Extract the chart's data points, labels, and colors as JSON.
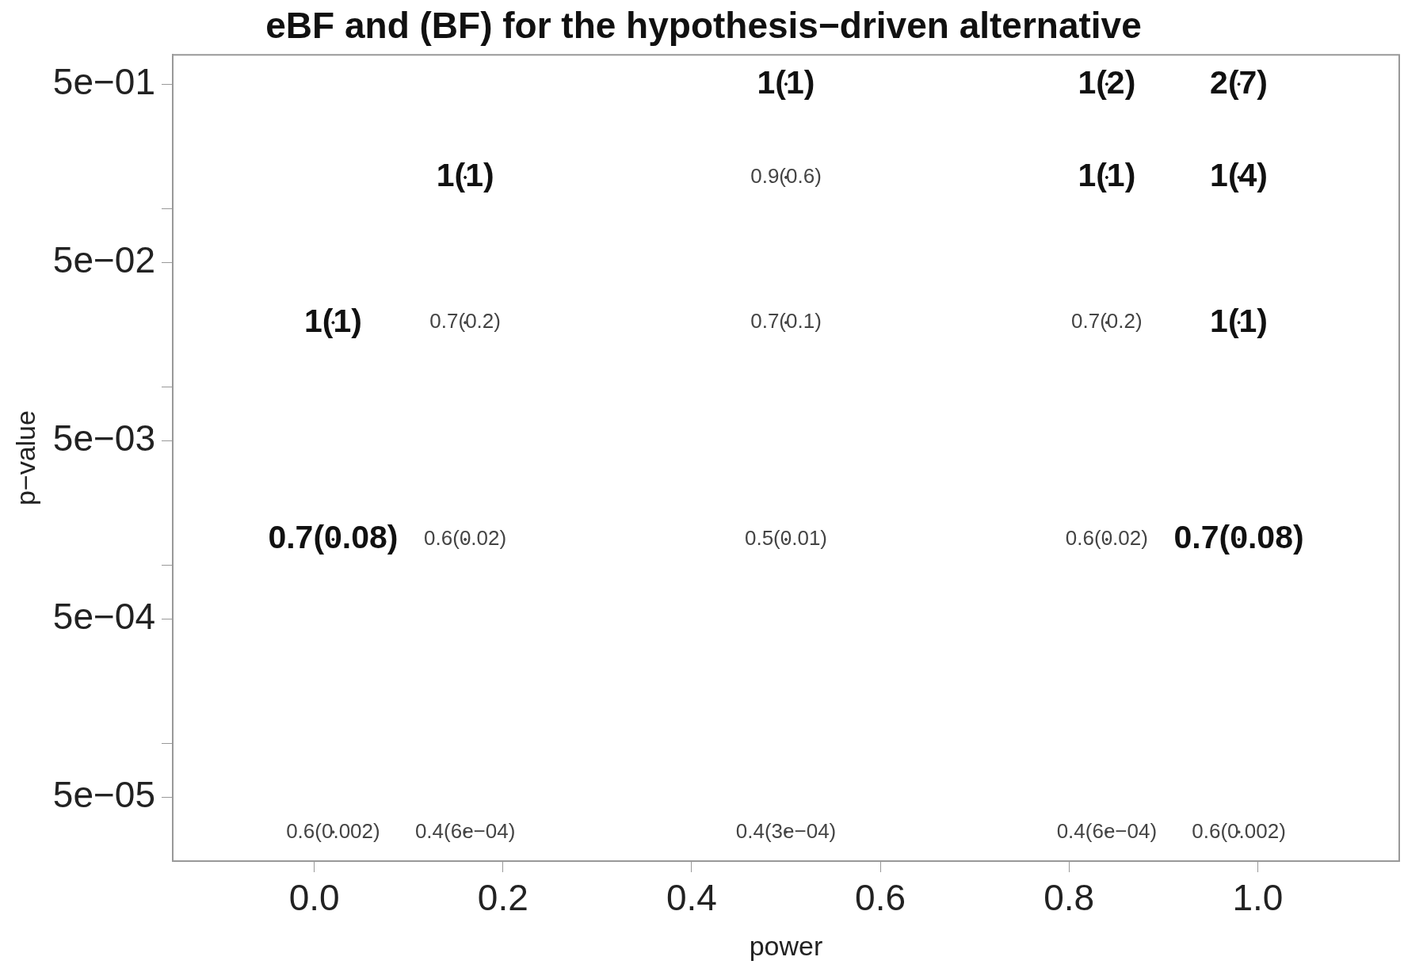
{
  "chart_data": {
    "type": "scatter",
    "title": "eBF and (BF) for the hypothesis−driven alternative",
    "xlabel": "power",
    "ylabel": "p−value",
    "log": "y",
    "xlim": [
      -0.15,
      1.15
    ],
    "xticks": [
      {
        "value": 0,
        "label": "0.0"
      },
      {
        "value": 0.2,
        "label": "0.2"
      },
      {
        "value": 0.4,
        "label": "0.4"
      },
      {
        "value": 0.6,
        "label": "0.6"
      },
      {
        "value": 0.8,
        "label": "0.8"
      },
      {
        "value": 1,
        "label": "1.0"
      }
    ],
    "ylim": [
      2.2e-05,
      0.73
    ],
    "yticks": [
      {
        "value": 0.5,
        "label": "5e−01"
      },
      {
        "value": 0.1,
        "label": null
      },
      {
        "value": 0.05,
        "label": "5e−02"
      },
      {
        "value": 0.01,
        "label": null
      },
      {
        "value": 0.005,
        "label": "5e−03"
      },
      {
        "value": 0.001,
        "label": null
      },
      {
        "value": 0.0005,
        "label": "5e−04"
      },
      {
        "value": 0.0001,
        "label": null
      },
      {
        "value": 5e-05,
        "label": "5e−05"
      }
    ],
    "series": [
      {
        "color": "#111111",
        "x": [
          0.5,
          0.84,
          0.98,
          0.16,
          0.84,
          0.98,
          0.02,
          0.98,
          0.02,
          0.98
        ],
        "values": [
          0.5,
          0.5,
          0.5,
          0.15,
          0.15,
          0.15,
          0.023,
          0.023,
          0.0014,
          0.0014
        ],
        "value_labels": [
          "1(1)",
          "1(2)",
          "2(7)",
          "1(1)",
          "1(1)",
          "1(4)",
          "1(1)",
          "1(1)",
          "0.7(0.08)",
          "0.7(0.08)"
        ]
      },
      {
        "color": "#444444",
        "x": [
          0.5,
          0.16,
          0.5,
          0.84,
          0.16,
          0.5,
          0.84,
          0.02,
          0.16,
          0.5,
          0.84,
          0.98
        ],
        "values": [
          0.15,
          0.023,
          0.023,
          0.023,
          0.0014,
          0.0014,
          0.0014,
          3.2e-05,
          3.2e-05,
          3.2e-05,
          3.2e-05,
          3.2e-05
        ],
        "value_labels": [
          "0.9(0.6)",
          "0.7(0.2)",
          "0.7(0.1)",
          "0.7(0.2)",
          "0.6(0.02)",
          "0.5(0.01)",
          "0.6(0.02)",
          "0.6(0.002)",
          "0.4(6e−04)",
          "0.4(3e−04)",
          "0.4(6e−04)",
          "0.6(0.002)"
        ]
      }
    ]
  }
}
